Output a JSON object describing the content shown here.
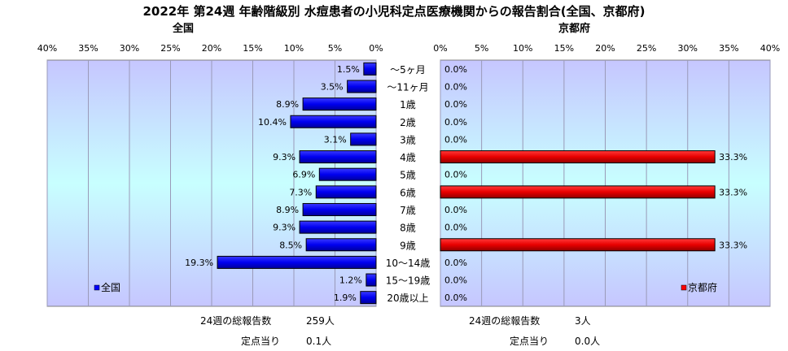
{
  "title": "2022年 第24週 年齢階級別 水痘患者の小児科定点医療機関からの報告割合(全国、京都府)",
  "left_panel": {
    "subtitle": "全国",
    "legend": "全国",
    "color": "#0000ff"
  },
  "right_panel": {
    "subtitle": "京都府",
    "legend": "京都府",
    "color": "#ff0000"
  },
  "summary": {
    "national_total_label": "24週の総報告数",
    "national_total_value": "259人",
    "national_per_label": "定点当り",
    "national_per_value": "0.1人",
    "kyoto_total_label": "24週の総報告数",
    "kyoto_total_value": "3人",
    "kyoto_per_label": "定点当り",
    "kyoto_per_value": "0.0人"
  },
  "chart_data": [
    {
      "type": "bar",
      "orientation": "horizontal",
      "direction": "right-to-left",
      "title": "全国",
      "categories": [
        "～5ヶ月",
        "～11ヶ月",
        "1歳",
        "2歳",
        "3歳",
        "4歳",
        "5歳",
        "6歳",
        "7歳",
        "8歳",
        "9歳",
        "10～14歳",
        "15～19歳",
        "20歳以上"
      ],
      "series": [
        {
          "name": "全国",
          "values": [
            1.5,
            3.5,
            8.9,
            10.4,
            3.1,
            9.3,
            6.9,
            7.3,
            8.9,
            9.3,
            8.5,
            19.3,
            1.2,
            1.9
          ]
        }
      ],
      "data_labels": [
        "1.5%",
        "3.5%",
        "8.9%",
        "10.4%",
        "3.1%",
        "9.3%",
        "6.9%",
        "7.3%",
        "8.9%",
        "9.3%",
        "8.5%",
        "19.3%",
        "1.2%",
        "1.9%"
      ],
      "xlim": [
        0,
        40
      ],
      "x_ticks": [
        "0%",
        "5%",
        "10%",
        "15%",
        "20%",
        "25%",
        "30%",
        "35%",
        "40%"
      ],
      "legend": "bottom-left",
      "grid": true
    },
    {
      "type": "bar",
      "orientation": "horizontal",
      "direction": "left-to-right",
      "title": "京都府",
      "categories": [
        "～5ヶ月",
        "～11ヶ月",
        "1歳",
        "2歳",
        "3歳",
        "4歳",
        "5歳",
        "6歳",
        "7歳",
        "8歳",
        "9歳",
        "10～14歳",
        "15～19歳",
        "20歳以上"
      ],
      "series": [
        {
          "name": "京都府",
          "values": [
            0,
            0,
            0,
            0,
            0,
            33.3,
            0,
            33.3,
            0,
            0,
            33.3,
            0,
            0,
            0
          ]
        }
      ],
      "data_labels": [
        "0.0%",
        "0.0%",
        "0.0%",
        "0.0%",
        "0.0%",
        "33.3%",
        "0.0%",
        "33.3%",
        "0.0%",
        "0.0%",
        "33.3%",
        "0.0%",
        "0.0%",
        "0.0%"
      ],
      "xlim": [
        0,
        40
      ],
      "x_ticks": [
        "0%",
        "5%",
        "10%",
        "15%",
        "20%",
        "25%",
        "30%",
        "35%",
        "40%"
      ],
      "legend": "bottom-right",
      "grid": true
    }
  ]
}
